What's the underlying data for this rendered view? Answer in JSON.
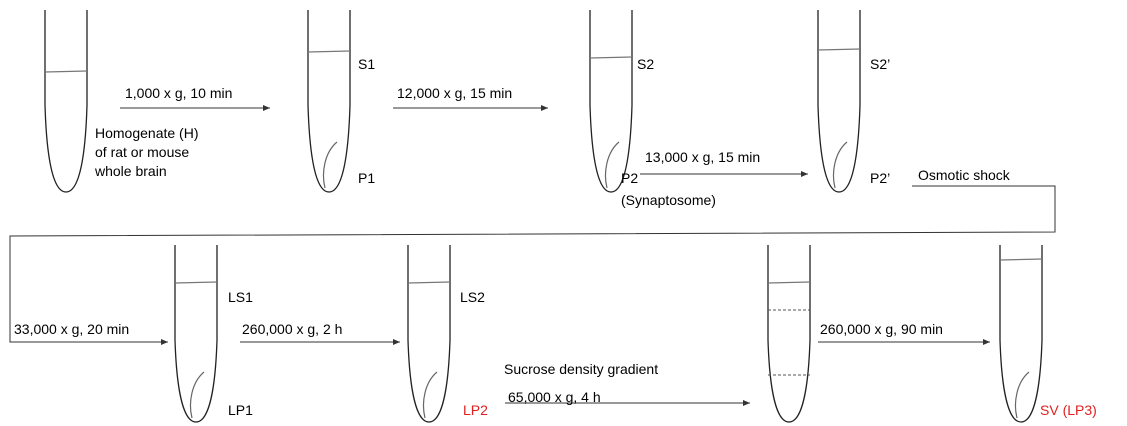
{
  "row1": {
    "input": [
      "Homogenate (H)",
      "of rat or mouse",
      "whole brain"
    ],
    "steps": [
      "1,000 x g, 10 min",
      "12,000 x g, 15 min",
      "13,000 x g, 15 min",
      "Osmotic shock"
    ],
    "fractions": [
      "S1",
      "P1",
      "S2",
      "P2",
      "(Synaptosome)",
      "S2’",
      "P2’"
    ]
  },
  "row2": {
    "steps": [
      "33,000 x g, 20 min",
      "260,000 x g, 2 h",
      "Sucrose density gradient",
      "65,000 x g, 4 h",
      "260,000 x g, 90 min"
    ],
    "fractions": [
      "LS1",
      "LP1",
      "LS2",
      "LP2",
      "SV (LP3)"
    ]
  }
}
